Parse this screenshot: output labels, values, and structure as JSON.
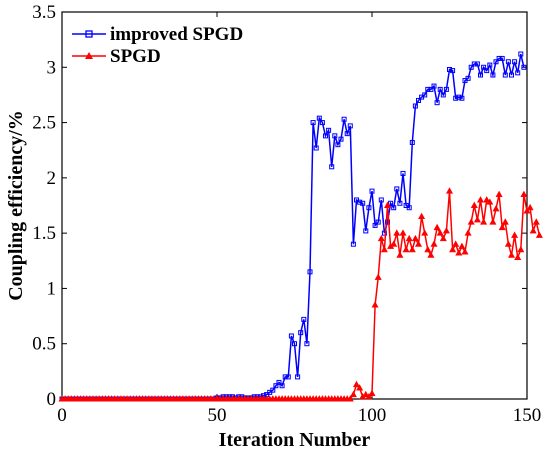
{
  "colors": {
    "background": "#ffffff",
    "axis": "#000000",
    "improved": "#0000ff",
    "spgd": "#ff0000"
  },
  "chart_data": {
    "type": "line",
    "title": "",
    "xlabel": "Iteration Number",
    "ylabel": "Coupling efficiency/%",
    "xlim": [
      0,
      150
    ],
    "ylim": [
      0,
      3.5
    ],
    "xticks": [
      0,
      50,
      100,
      150
    ],
    "yticks": [
      0,
      0.5,
      1,
      1.5,
      2,
      2.5,
      3,
      3.5
    ],
    "xtick_labels": [
      "0",
      "50",
      "100",
      "150"
    ],
    "ytick_labels": [
      "0",
      "0.5",
      "1",
      "1.5",
      "2",
      "2.5",
      "3",
      "3.5"
    ],
    "grid": false,
    "legend_position": "top-left",
    "series": [
      {
        "name": "improved SPGD",
        "color": "#0000ff",
        "marker": "square",
        "values": [
          0,
          0,
          0,
          0,
          0,
          0,
          0,
          0,
          0,
          0,
          0,
          0,
          0,
          0,
          0,
          0,
          0,
          0,
          0,
          0,
          0,
          0,
          0,
          0,
          0,
          0,
          0,
          0,
          0,
          0,
          0,
          0,
          0,
          0,
          0,
          0,
          0,
          0,
          0,
          0,
          0,
          0,
          0,
          0,
          0,
          0,
          0,
          0,
          0,
          0,
          0.01,
          0.01,
          0.02,
          0.02,
          0.02,
          0.02,
          0.01,
          0.02,
          0.02,
          0.01,
          0.01,
          0.01,
          0.02,
          0.02,
          0.02,
          0.03,
          0.04,
          0.06,
          0.08,
          0.12,
          0.15,
          0.12,
          0.2,
          0.2,
          0.57,
          0.5,
          0.2,
          0.6,
          0.72,
          0.5,
          1.15,
          2.5,
          2.27,
          2.54,
          2.5,
          2.38,
          2.43,
          2.1,
          2.38,
          2.3,
          2.35,
          2.53,
          2.4,
          2.47,
          1.4,
          1.8,
          1.78,
          1.77,
          1.52,
          1.73,
          1.88,
          1.57,
          1.6,
          1.8,
          1.5,
          1.6,
          1.77,
          1.73,
          1.9,
          1.77,
          2.04,
          1.75,
          1.73,
          2.32,
          2.65,
          2.7,
          2.73,
          2.75,
          2.8,
          2.8,
          2.83,
          2.68,
          2.8,
          2.75,
          2.8,
          2.98,
          2.97,
          2.72,
          2.73,
          2.72,
          2.88,
          2.9,
          3.0,
          3.03,
          3.03,
          2.93,
          3.0,
          2.97,
          3.02,
          2.93,
          3.05,
          3.08,
          3.08,
          2.93,
          3.05,
          2.93,
          3.05,
          2.95,
          3.12,
          3.0
        ]
      },
      {
        "name": "SPGD",
        "color": "#ff0000",
        "marker": "triangle",
        "values": [
          0,
          0,
          0,
          0,
          0,
          0,
          0,
          0,
          0,
          0,
          0,
          0,
          0,
          0,
          0,
          0,
          0,
          0,
          0,
          0,
          0,
          0,
          0,
          0,
          0,
          0,
          0,
          0,
          0,
          0,
          0,
          0,
          0,
          0,
          0,
          0,
          0,
          0,
          0,
          0,
          0,
          0,
          0,
          0,
          0,
          0,
          0,
          0,
          0,
          0,
          0,
          0,
          0,
          0,
          0,
          0,
          0,
          0,
          0,
          0,
          0,
          0,
          0,
          0,
          0,
          0,
          0,
          0,
          0,
          0,
          0,
          0,
          0,
          0,
          0,
          0,
          0,
          0,
          0,
          0,
          0,
          0,
          0,
          0,
          0,
          0,
          0,
          0,
          0,
          0,
          0,
          0,
          0,
          0,
          0.04,
          0.13,
          0.1,
          0.02,
          0.04,
          0.02,
          0.05,
          0.85,
          1.1,
          1.45,
          1.35,
          1.75,
          1.38,
          1.4,
          1.5,
          1.3,
          1.5,
          1.35,
          1.45,
          1.35,
          1.45,
          1.4,
          1.65,
          1.5,
          1.35,
          1.3,
          1.4,
          1.55,
          1.5,
          1.45,
          1.52,
          1.88,
          1.35,
          1.4,
          1.32,
          1.38,
          1.33,
          1.5,
          1.6,
          1.75,
          1.62,
          1.8,
          1.6,
          1.8,
          1.78,
          1.6,
          1.72,
          1.85,
          1.55,
          1.6,
          1.4,
          1.3,
          1.48,
          1.28,
          1.35,
          1.85,
          1.7,
          1.73,
          1.52,
          1.6,
          1.48
        ]
      }
    ]
  }
}
